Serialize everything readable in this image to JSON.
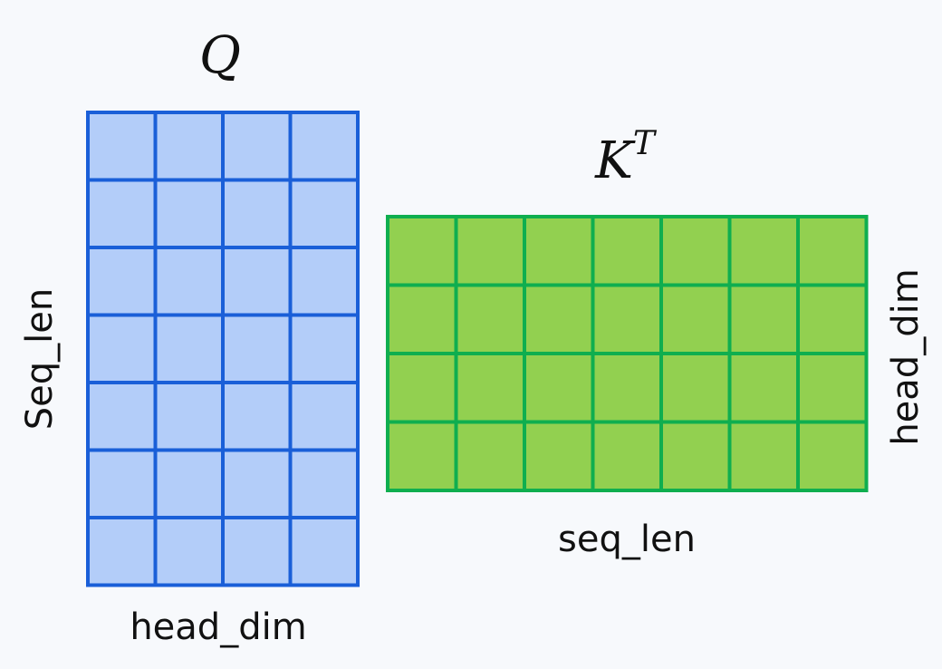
{
  "matrices": [
    {
      "id": "q",
      "symbol": "Q",
      "superscript": "",
      "rows": 7,
      "cols": 4,
      "fill_color": "#b3cdf9",
      "stroke_color": "#1a5fd8",
      "left_label": "Seq_len",
      "bottom_label": "head_dim",
      "right_label": ""
    },
    {
      "id": "kt",
      "symbol": "K",
      "superscript": "T",
      "rows": 4,
      "cols": 7,
      "fill_color": "#92d050",
      "stroke_color": "#0fae4f",
      "left_label": "",
      "bottom_label": "seq_len",
      "right_label": "head_dim"
    }
  ]
}
